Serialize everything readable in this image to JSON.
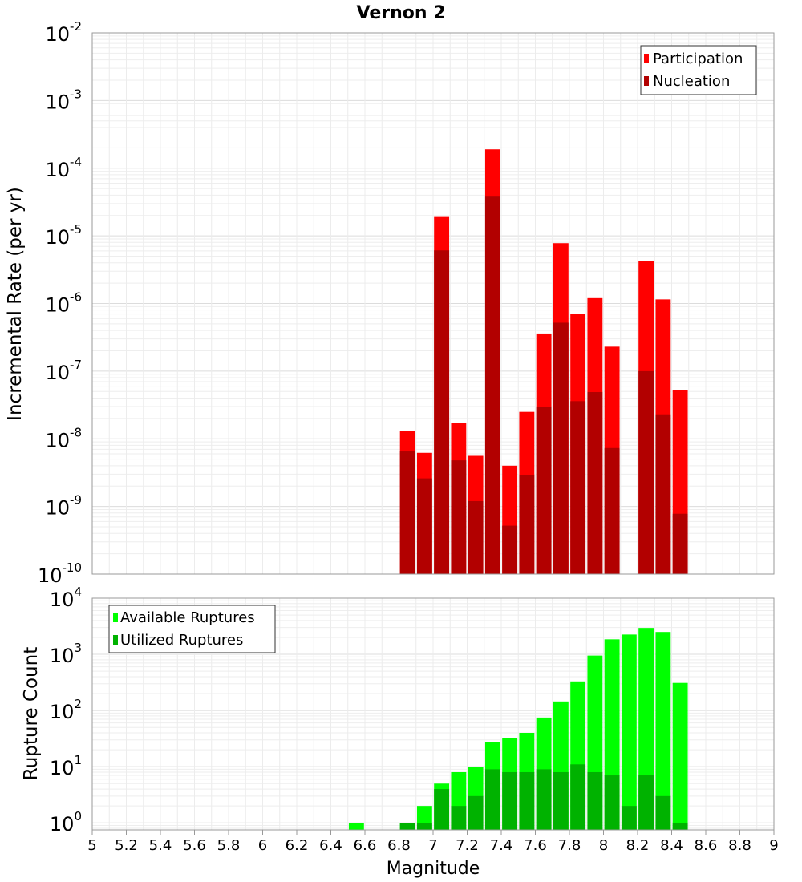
{
  "title": "Vernon 2",
  "x_tick_labels": [
    "5",
    "5.2",
    "5.4",
    "5.6",
    "5.8",
    "6",
    "6.2",
    "6.4",
    "6.6",
    "6.8",
    "7",
    "7.2",
    "7.4",
    "7.6",
    "7.8",
    "8",
    "8.2",
    "8.4",
    "8.6",
    "8.8",
    "9"
  ],
  "xlabel": "Magnitude",
  "colors": {
    "participation": "#ff0000",
    "nucleation": "#b20000",
    "available": "#00ff00",
    "utilized": "#00b200"
  },
  "chart_data": [
    {
      "type": "bar",
      "scale": "log",
      "title": "Vernon 2",
      "xlabel": "Magnitude",
      "ylabel": "Incremental Rate (per yr)",
      "xlim": [
        5,
        9
      ],
      "ylim": [
        1e-10,
        0.01
      ],
      "y_tick_labels": [
        {
          "base": "10",
          "exp": "-2"
        },
        {
          "base": "10",
          "exp": "-3"
        },
        {
          "base": "10",
          "exp": "-4"
        },
        {
          "base": "10",
          "exp": "-5"
        },
        {
          "base": "10",
          "exp": "-6"
        },
        {
          "base": "10",
          "exp": "-7"
        },
        {
          "base": "10",
          "exp": "-8"
        },
        {
          "base": "10",
          "exp": "-9"
        },
        {
          "base": "10",
          "exp": "-10"
        }
      ],
      "y_tick_values": [
        0.01,
        0.001,
        0.0001,
        1e-05,
        1e-06,
        1e-07,
        1e-08,
        1e-09,
        1e-10
      ],
      "grid": true,
      "legend_position": "top-right",
      "x": [
        6.85,
        6.95,
        7.05,
        7.15,
        7.25,
        7.35,
        7.45,
        7.55,
        7.65,
        7.75,
        7.85,
        7.95,
        8.05,
        8.15,
        8.25,
        8.35,
        8.45
      ],
      "series": [
        {
          "name": "Participation",
          "values": [
            1.3e-08,
            6.2e-09,
            1.9e-05,
            1.7e-08,
            5.6e-09,
            0.00019,
            4e-09,
            2.5e-08,
            3.6e-07,
            7.8e-06,
            7e-07,
            1.2e-06,
            2.3e-07,
            null,
            4.3e-06,
            1.15e-06,
            5.2e-08
          ]
        },
        {
          "name": "Nucleation",
          "values": [
            6.5e-09,
            2.6e-09,
            6.1e-06,
            4.8e-09,
            1.2e-09,
            3.8e-05,
            5.2e-10,
            2.9e-09,
            3e-08,
            5.2e-07,
            3.6e-08,
            4.9e-08,
            7.3e-09,
            null,
            1e-07,
            2.3e-08,
            7.8e-10
          ]
        }
      ]
    },
    {
      "type": "bar",
      "scale": "log",
      "xlabel": "Magnitude",
      "ylabel": "Rupture Count",
      "xlim": [
        5,
        9
      ],
      "ylim": [
        0.75,
        10000.0
      ],
      "y_tick_labels": [
        {
          "base": "10",
          "exp": "4"
        },
        {
          "base": "10",
          "exp": "3"
        },
        {
          "base": "10",
          "exp": "2"
        },
        {
          "base": "10",
          "exp": "1"
        },
        {
          "base": "10",
          "exp": "0"
        }
      ],
      "y_tick_values": [
        10000.0,
        1000.0,
        100.0,
        10.0,
        1.0
      ],
      "grid": true,
      "legend_position": "top-left",
      "x": [
        6.55,
        6.85,
        6.95,
        7.05,
        7.15,
        7.25,
        7.35,
        7.45,
        7.55,
        7.65,
        7.75,
        7.85,
        7.95,
        8.05,
        8.15,
        8.25,
        8.35,
        8.45
      ],
      "series": [
        {
          "name": "Available Ruptures",
          "values": [
            1,
            1,
            2,
            5,
            8,
            10,
            27,
            32,
            40,
            75,
            145,
            330,
            950,
            1850,
            2250,
            2950,
            2500,
            310
          ]
        },
        {
          "name": "Utilized Ruptures",
          "values": [
            null,
            1,
            1,
            4,
            2,
            3,
            9,
            8,
            8,
            9,
            8,
            11,
            8,
            7,
            2,
            7,
            3,
            1
          ]
        }
      ]
    }
  ]
}
